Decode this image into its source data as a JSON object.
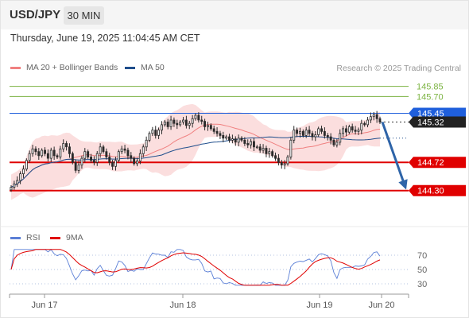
{
  "header": {
    "symbol": "USD/JPY",
    "timeframe": "30 MIN"
  },
  "datetime": "Thursday, June 19, 2025 11:04:45 AM CET",
  "legend": {
    "bb_label": "MA 20 + Bollinger Bands",
    "bb_color": "#f08080",
    "ma50_label": "MA 50",
    "ma50_color": "#1f4e8c"
  },
  "credit": "Research © 2025 Trading Central",
  "rsi_legend": {
    "rsi_label": "RSI",
    "rsi_color": "#5b7fd6",
    "ma_label": "9MA",
    "ma_color": "#e00000"
  },
  "chart_data": {
    "type": "candlestick",
    "symbol": "USD/JPY",
    "interval": "30 MIN",
    "ylim": [
      143.8,
      146.0
    ],
    "x_ticks": [
      "Jun 17",
      "Jun 18",
      "Jun 19",
      "Jun 20"
    ],
    "closes": [
      144.35,
      144.4,
      144.45,
      144.55,
      144.62,
      144.75,
      144.85,
      144.92,
      144.88,
      144.82,
      144.9,
      144.85,
      144.78,
      144.9,
      144.82,
      144.8,
      144.92,
      145.0,
      144.95,
      144.85,
      144.72,
      144.6,
      144.68,
      144.78,
      144.88,
      144.8,
      144.75,
      144.72,
      144.85,
      144.95,
      144.88,
      144.8,
      144.72,
      144.66,
      144.75,
      144.88,
      144.92,
      144.9,
      144.82,
      144.78,
      144.7,
      144.74,
      144.85,
      144.95,
      145.05,
      145.15,
      145.2,
      145.12,
      145.2,
      145.28,
      145.32,
      145.25,
      145.35,
      145.3,
      145.28,
      145.32,
      145.35,
      145.27,
      145.3,
      145.37,
      145.42,
      145.35,
      145.33,
      145.25,
      145.27,
      145.22,
      145.18,
      145.15,
      145.12,
      145.08,
      145.1,
      145.05,
      145.07,
      145.02,
      145.08,
      145.05,
      145.0,
      144.98,
      145.03,
      144.95,
      144.95,
      144.9,
      144.93,
      144.85,
      144.88,
      144.82,
      144.78,
      144.72,
      144.68,
      144.7,
      144.8,
      145.05,
      145.2,
      145.15,
      145.18,
      145.12,
      145.2,
      145.15,
      145.1,
      145.13,
      145.22,
      145.18,
      145.12,
      145.1,
      145.05,
      144.98,
      145.02,
      145.15,
      145.22,
      145.17,
      145.25,
      145.2,
      145.18,
      145.2,
      145.3,
      145.28,
      145.35,
      145.4,
      145.43,
      145.37,
      145.32
    ],
    "levels": [
      {
        "value": 145.85,
        "label": "145.85",
        "color": "#7cb342"
      },
      {
        "value": 145.7,
        "label": "145.70",
        "color": "#7cb342"
      },
      {
        "value": 145.45,
        "label": "145.45",
        "color": "#1f5fdc"
      },
      {
        "value": 145.32,
        "label": "145.32",
        "color": "#222222"
      },
      {
        "value": 144.72,
        "label": "144.72",
        "color": "#e00000"
      },
      {
        "value": 144.3,
        "label": "144.30",
        "color": "#e00000"
      }
    ],
    "rsi": {
      "ticks": [
        "70",
        "50",
        "30"
      ],
      "ylim": [
        20,
        80
      ]
    }
  }
}
